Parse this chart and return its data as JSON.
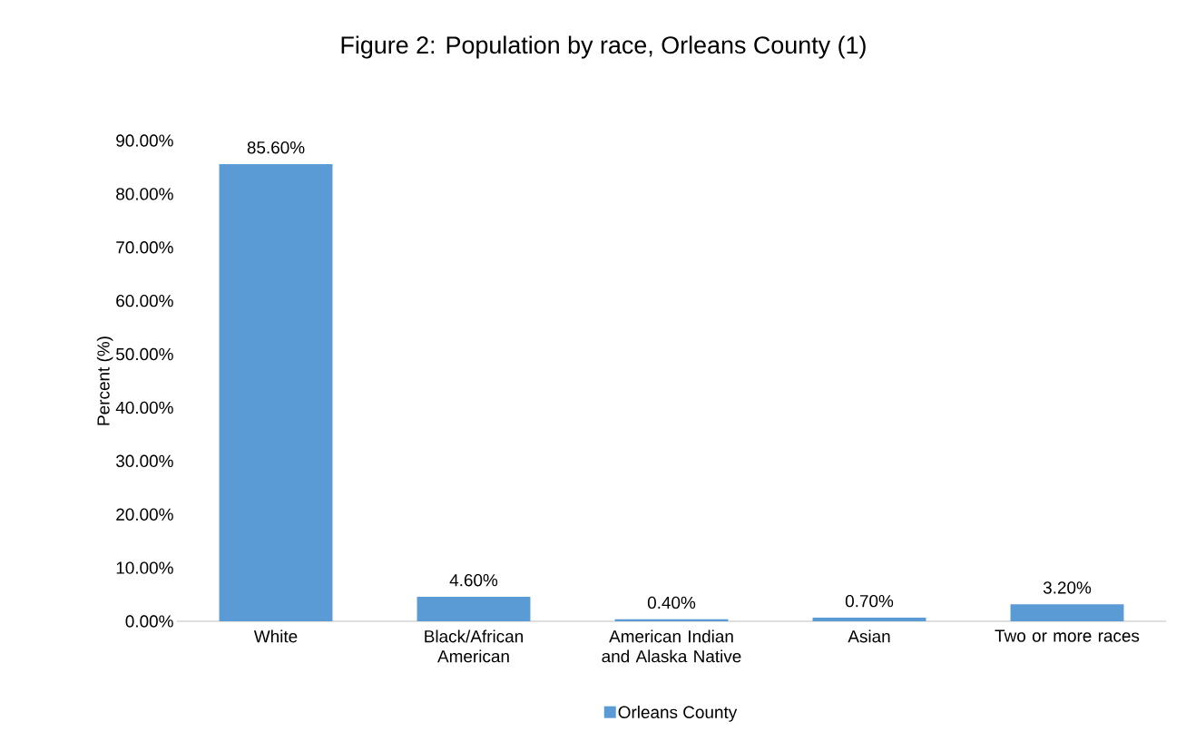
{
  "chart_data": {
    "type": "bar",
    "title": "Figure 2: Population by race, Orleans County (1)",
    "ylabel": "Percent (%)",
    "categories": [
      "White",
      "Black/African American",
      "American Indian and Alaska Native",
      "Asian",
      "Two or more races"
    ],
    "series": [
      {
        "name": "Orleans County",
        "color": "#5b9bd5",
        "values": [
          85.6,
          4.6,
          0.4,
          0.7,
          3.2
        ],
        "value_labels": [
          "85.60%",
          "4.60%",
          "0.40%",
          "0.70%",
          "3.20%"
        ]
      }
    ],
    "ylim": [
      0,
      90
    ],
    "yticks": [
      {
        "value": 0,
        "label": "0.00%"
      },
      {
        "value": 10,
        "label": "10.00%"
      },
      {
        "value": 20,
        "label": "20.00%"
      },
      {
        "value": 30,
        "label": "30.00%"
      },
      {
        "value": 40,
        "label": "40.00%"
      },
      {
        "value": 50,
        "label": "50.00%"
      },
      {
        "value": 60,
        "label": "60.00%"
      },
      {
        "value": 70,
        "label": "70.00%"
      },
      {
        "value": 80,
        "label": "80.00%"
      },
      {
        "value": 90,
        "label": "90.00%"
      }
    ],
    "legend": "bottom"
  }
}
